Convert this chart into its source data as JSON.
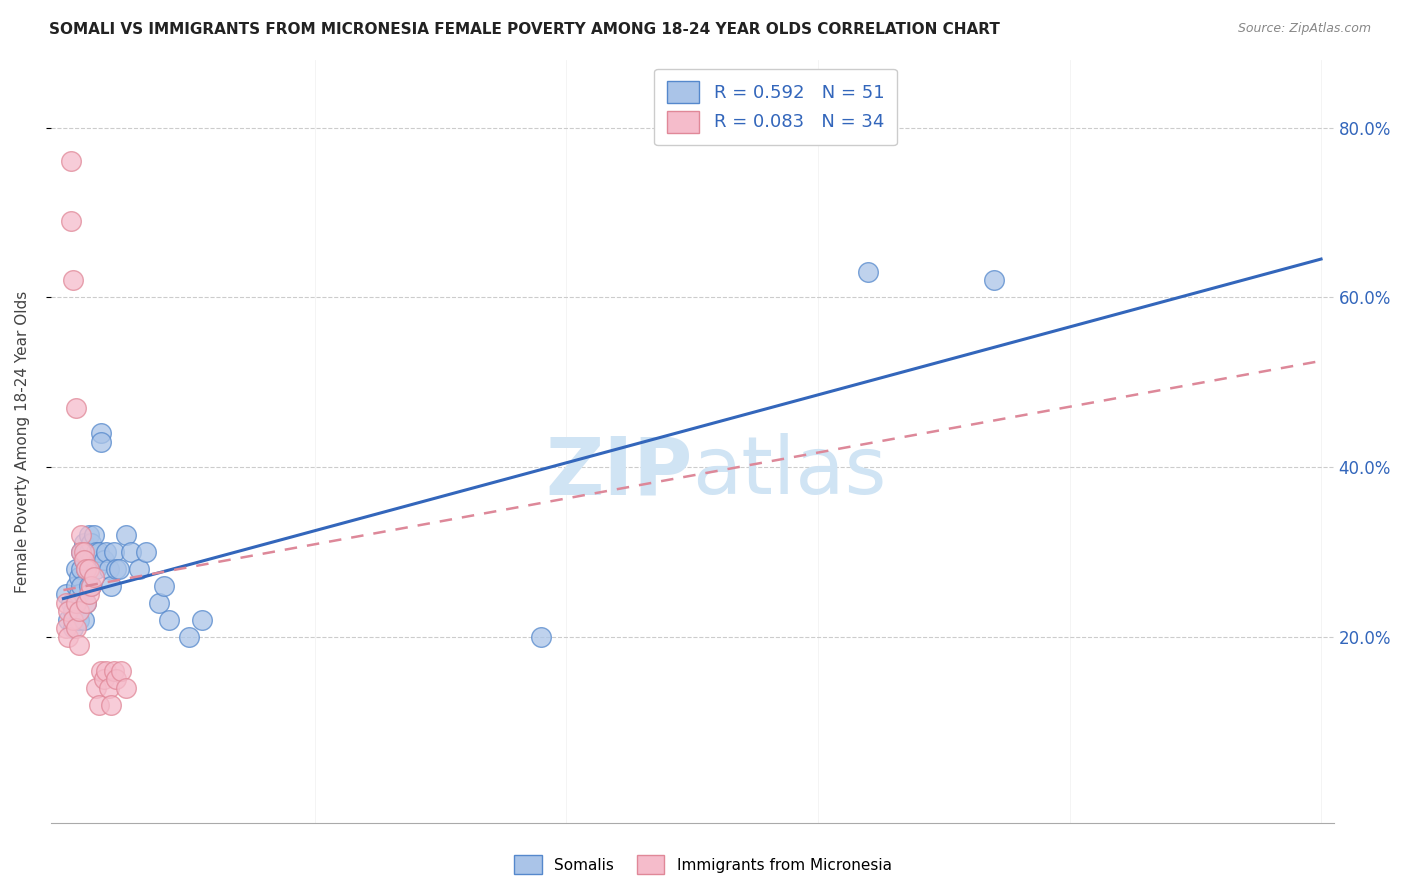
{
  "title": "SOMALI VS IMMIGRANTS FROM MICRONESIA FEMALE POVERTY AMONG 18-24 YEAR OLDS CORRELATION CHART",
  "source": "Source: ZipAtlas.com",
  "ylabel": "Female Poverty Among 18-24 Year Olds",
  "yticks": [
    "20.0%",
    "40.0%",
    "60.0%",
    "80.0%"
  ],
  "ytick_vals": [
    0.2,
    0.4,
    0.6,
    0.8
  ],
  "xlim": [
    -0.005,
    0.505
  ],
  "ylim": [
    -0.02,
    0.88
  ],
  "somali_color": "#aac4e8",
  "micronesia_color": "#f5bccb",
  "somali_edge_color": "#5588cc",
  "micronesia_edge_color": "#e08898",
  "somali_line_color": "#3366bb",
  "micronesia_line_color": "#dd8899",
  "watermark_color": "#d0e4f4",
  "somali_x": [
    0.001,
    0.002,
    0.003,
    0.004,
    0.004,
    0.005,
    0.005,
    0.005,
    0.006,
    0.006,
    0.006,
    0.007,
    0.007,
    0.007,
    0.008,
    0.008,
    0.008,
    0.009,
    0.009,
    0.009,
    0.01,
    0.01,
    0.01,
    0.011,
    0.011,
    0.011,
    0.012,
    0.013,
    0.013,
    0.014,
    0.015,
    0.015,
    0.016,
    0.017,
    0.018,
    0.019,
    0.02,
    0.021,
    0.022,
    0.025,
    0.027,
    0.03,
    0.033,
    0.038,
    0.04,
    0.042,
    0.05,
    0.055,
    0.19,
    0.32,
    0.37
  ],
  "somali_y": [
    0.25,
    0.22,
    0.24,
    0.23,
    0.21,
    0.28,
    0.26,
    0.24,
    0.27,
    0.25,
    0.22,
    0.3,
    0.28,
    0.26,
    0.31,
    0.29,
    0.22,
    0.3,
    0.28,
    0.24,
    0.32,
    0.3,
    0.26,
    0.31,
    0.29,
    0.26,
    0.32,
    0.3,
    0.28,
    0.3,
    0.44,
    0.43,
    0.29,
    0.3,
    0.28,
    0.26,
    0.3,
    0.28,
    0.28,
    0.32,
    0.3,
    0.28,
    0.3,
    0.24,
    0.26,
    0.22,
    0.2,
    0.22,
    0.2,
    0.63,
    0.62
  ],
  "micronesia_x": [
    0.001,
    0.001,
    0.002,
    0.002,
    0.003,
    0.003,
    0.004,
    0.004,
    0.005,
    0.005,
    0.005,
    0.006,
    0.006,
    0.007,
    0.007,
    0.008,
    0.008,
    0.009,
    0.009,
    0.01,
    0.01,
    0.011,
    0.012,
    0.013,
    0.014,
    0.015,
    0.016,
    0.017,
    0.018,
    0.019,
    0.02,
    0.021,
    0.023,
    0.025
  ],
  "micronesia_y": [
    0.24,
    0.21,
    0.23,
    0.2,
    0.76,
    0.69,
    0.62,
    0.22,
    0.24,
    0.47,
    0.21,
    0.19,
    0.23,
    0.32,
    0.3,
    0.3,
    0.29,
    0.28,
    0.24,
    0.28,
    0.25,
    0.26,
    0.27,
    0.14,
    0.12,
    0.16,
    0.15,
    0.16,
    0.14,
    0.12,
    0.16,
    0.15,
    0.16,
    0.14
  ]
}
